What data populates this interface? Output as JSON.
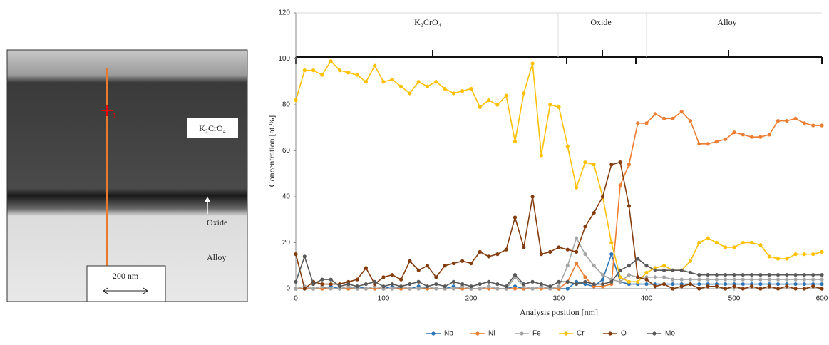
{
  "micrograph": {
    "layer_label": "K₂CrO₄",
    "oxide_label": "Oxide",
    "alloy_label": "Alloy",
    "scale_bar": "200 nm",
    "point_label": "1"
  },
  "chart_data": {
    "type": "line",
    "x_label": "Analysis position  [nm]",
    "y_label": "Concentration  [at.%]",
    "regions": [
      "K₂CrO₄",
      "Oxide",
      "Alloy"
    ],
    "x": [
      0,
      10,
      20,
      30,
      40,
      50,
      60,
      70,
      80,
      90,
      100,
      110,
      120,
      130,
      140,
      150,
      160,
      170,
      180,
      190,
      200,
      210,
      220,
      230,
      240,
      250,
      260,
      270,
      280,
      290,
      300,
      310,
      320,
      330,
      340,
      350,
      360,
      370,
      380,
      390,
      400,
      410,
      420,
      430,
      440,
      450,
      460,
      470,
      480,
      490,
      500,
      510,
      520,
      530,
      540,
      550,
      560,
      570,
      580,
      590,
      600
    ],
    "series": [
      {
        "name": "Nb",
        "color": "#2e75b6",
        "values": [
          0,
          0,
          0,
          0,
          1,
          0,
          0,
          1,
          0,
          0,
          0,
          1,
          0,
          0,
          1,
          0,
          0,
          0,
          1,
          0,
          0,
          0,
          1,
          0,
          0,
          1,
          0,
          0,
          1,
          0,
          0,
          0,
          3,
          2,
          1,
          4,
          15,
          3,
          2,
          2,
          2,
          2,
          2,
          2,
          2,
          2,
          2,
          2,
          2,
          2,
          2,
          2,
          2,
          2,
          2,
          2,
          2,
          2,
          2,
          2,
          2
        ]
      },
      {
        "name": "Ni",
        "color": "#ed7d31",
        "values": [
          0,
          0,
          0,
          0,
          0,
          0,
          0,
          0,
          0,
          0,
          0,
          0,
          0,
          0,
          0,
          0,
          0,
          0,
          0,
          0,
          0,
          0,
          0,
          0,
          0,
          0,
          0,
          0,
          0,
          0,
          0,
          3,
          11,
          5,
          1,
          1,
          2,
          45,
          54,
          72,
          72,
          76,
          74,
          74,
          77,
          73,
          63,
          63,
          64,
          65,
          68,
          67,
          66,
          66,
          67,
          73,
          73,
          74,
          72,
          71,
          71
        ]
      },
      {
        "name": "Fe",
        "color": "#a5a5a5",
        "values": [
          0,
          1,
          0,
          1,
          0,
          0,
          1,
          0,
          0,
          1,
          0,
          0,
          1,
          0,
          0,
          1,
          0,
          0,
          0,
          1,
          0,
          0,
          1,
          0,
          0,
          5,
          1,
          0,
          1,
          0,
          1,
          10,
          22,
          15,
          10,
          6,
          4,
          3,
          6,
          5,
          5,
          5,
          5,
          4,
          4,
          4,
          4,
          4,
          4,
          4,
          4,
          4,
          4,
          4,
          4,
          4,
          4,
          4,
          4,
          4,
          4
        ]
      },
      {
        "name": "Cr",
        "color": "#ffc000",
        "values": [
          82,
          95,
          95,
          93,
          99,
          95,
          94,
          93,
          90,
          97,
          90,
          91,
          88,
          85,
          90,
          88,
          90,
          87,
          85,
          86,
          87,
          79,
          82,
          80,
          84,
          64,
          85,
          98,
          58,
          80,
          79,
          62,
          44,
          55,
          54,
          40,
          20,
          5,
          3,
          3,
          7,
          9,
          10,
          8,
          8,
          12,
          20,
          22,
          20,
          18,
          18,
          20,
          20,
          19,
          14,
          13,
          13,
          15,
          15,
          15,
          16
        ]
      },
      {
        "name": "O",
        "color": "#843c0c",
        "values": [
          15,
          0,
          3,
          2,
          2,
          2,
          3,
          4,
          9,
          2,
          5,
          6,
          4,
          12,
          8,
          10,
          5,
          10,
          11,
          12,
          11,
          16,
          14,
          15,
          17,
          31,
          18,
          40,
          15,
          16,
          18,
          17,
          16,
          27,
          33,
          40,
          54,
          55,
          36,
          5,
          4,
          1,
          2,
          0,
          1,
          2,
          0,
          1,
          1,
          0,
          1,
          0,
          1,
          0,
          1,
          0,
          1,
          0,
          0,
          1,
          0
        ]
      },
      {
        "name": "Mo",
        "color": "#595959",
        "values": [
          3,
          14,
          2,
          4,
          4,
          1,
          2,
          1,
          2,
          3,
          1,
          2,
          1,
          2,
          3,
          1,
          2,
          1,
          3,
          2,
          1,
          2,
          3,
          2,
          1,
          6,
          2,
          3,
          2,
          1,
          3,
          3,
          2,
          3,
          2,
          2,
          3,
          8,
          10,
          13,
          10,
          8,
          8,
          8,
          8,
          7,
          6,
          6,
          6,
          6,
          6,
          6,
          6,
          6,
          6,
          6,
          6,
          6,
          6,
          6,
          6
        ]
      }
    ],
    "xlim": [
      0,
      600
    ],
    "xticks": [
      0,
      100,
      200,
      300,
      400,
      500,
      600
    ],
    "ylim": [
      0,
      120
    ],
    "yticks": [
      0,
      20,
      40,
      60,
      80,
      100,
      120
    ],
    "legend": "bottom"
  }
}
